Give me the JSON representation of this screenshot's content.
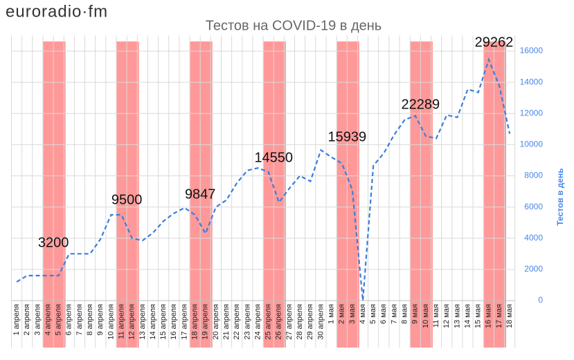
{
  "logo": "euroradio·fm",
  "chart_data": {
    "type": "line",
    "title": "Тестов на COVID-19 в день",
    "y_axis_label": "Тестов в день",
    "categories": [
      "1 апреля",
      "2 апреля",
      "3 апреля",
      "4 апреля",
      "5 апреля",
      "6 апреля",
      "7 апреля",
      "8 апреля",
      "9 апреля",
      "10 апреля",
      "11 апреля",
      "12 апреля",
      "13 апреля",
      "14 апреля",
      "15 апреля",
      "16 апреля",
      "17 апреля",
      "18 апреля",
      "19 апреля",
      "20 апреля",
      "21 апреля",
      "22 апреля",
      "23 апреля",
      "24 апреля",
      "25 апреля",
      "26 апреля",
      "27 апреля",
      "28 апреля",
      "29 апреля",
      "30 апреля",
      "1 мая",
      "2 мая",
      "3 мая",
      "4 мая",
      "5 мая",
      "6 мая",
      "7 мая",
      "8 мая",
      "9 мая",
      "10 мая",
      "11 мая",
      "12 мая",
      "13 мая",
      "14 мая",
      "15 мая",
      "16 мая",
      "17 мая",
      "18 мая"
    ],
    "series": [
      {
        "name": "Тестов в день",
        "color": "#3b7ddd",
        "axis": "y2",
        "values": [
          1200,
          1600,
          1600,
          1600,
          1600,
          3000,
          3000,
          3000,
          3950,
          5500,
          5500,
          4000,
          3850,
          4350,
          5100,
          5600,
          5950,
          5500,
          4300,
          6000,
          6450,
          7550,
          8350,
          8500,
          8250,
          6300,
          7200,
          8000,
          7650,
          9650,
          9200,
          8800,
          7100,
          0,
          8650,
          9450,
          10650,
          11600,
          11850,
          10550,
          10400,
          11900,
          11750,
          13550,
          13350,
          15450,
          13800,
          10700
        ]
      }
    ],
    "y2lim": [
      0,
      17000
    ],
    "y2ticks": [
      0,
      2000,
      4000,
      6000,
      8000,
      10000,
      12000,
      14000,
      16000
    ],
    "grid": true,
    "highlight_color": "#ff9999",
    "highlights": [
      [
        "4 апреля",
        "5 апреля"
      ],
      [
        "11 апреля",
        "12 апреля"
      ],
      [
        "18 апреля",
        "19 апреля"
      ],
      [
        "25 апреля",
        "26 апреля"
      ],
      [
        "2 мая",
        "3 мая"
      ],
      [
        "9 мая",
        "10 мая"
      ],
      [
        "16 мая",
        "17 мая"
      ]
    ],
    "annotations": [
      "3200",
      "9500",
      "9847",
      "14550",
      "15939",
      "22289",
      "29262"
    ]
  }
}
